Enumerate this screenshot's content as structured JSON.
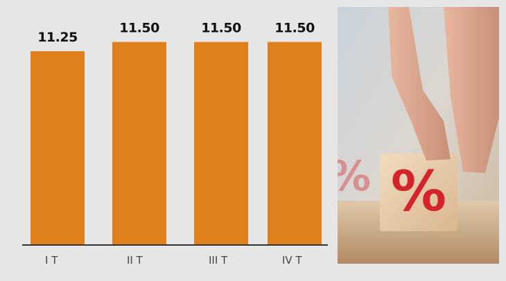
{
  "chart_data": {
    "type": "bar",
    "categories": [
      "I T",
      "II T",
      "III T",
      "IV T"
    ],
    "values": [
      11.25,
      11.5,
      11.5,
      11.5
    ],
    "value_labels": [
      "11.25",
      "11.50",
      "11.50",
      "11.50"
    ],
    "color": "#e0801c",
    "ylim": [
      6,
      12
    ]
  }
}
